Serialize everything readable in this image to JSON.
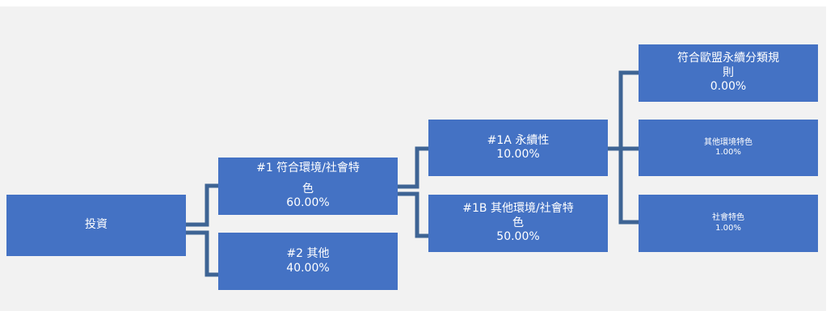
{
  "colors": {
    "box": "#4472c4",
    "connector": "#3e6494",
    "background": "#f2f2f2"
  },
  "nodes": {
    "root": {
      "label": "投資"
    },
    "n1": {
      "label_line1": "#1 符合環境/社會特",
      "label_line2": "色",
      "value": "60.00%"
    },
    "n2": {
      "label": "#2 其他",
      "value": "40.00%"
    },
    "n1a": {
      "label": "#1A 永續性",
      "value": "10.00%"
    },
    "n1b": {
      "label_line1": "#1B 其他環境/社會特",
      "label_line2": "色",
      "value": "50.00%"
    },
    "eu": {
      "label_line1": "符合歐盟永續分類規",
      "label_line2": "則",
      "value": "0.00%"
    },
    "env": {
      "label": "其他環境特色",
      "value": "1.00%"
    },
    "soc": {
      "label": "社會特色",
      "value": "1.00%"
    }
  }
}
